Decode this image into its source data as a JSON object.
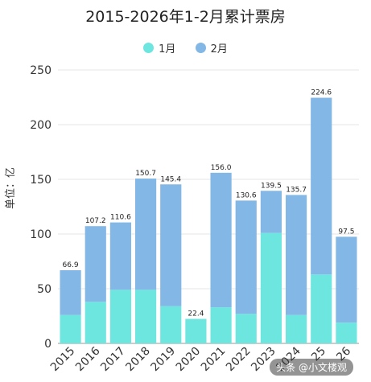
{
  "chart_data": {
    "type": "bar",
    "stacked": true,
    "title": "2015-2026年1-2月累计票房",
    "ylabel": "单位：亿",
    "categories": [
      "2015",
      "2016",
      "2017",
      "2018",
      "2019",
      "2020",
      "2021",
      "2022",
      "2023",
      "2024",
      "25",
      "26"
    ],
    "series": [
      {
        "name": "1月",
        "color": "#6ee6e0",
        "values": [
          26,
          38,
          49,
          49,
          34,
          22.4,
          33,
          27,
          101,
          26,
          63,
          19
        ]
      },
      {
        "name": "2月",
        "color": "#82b7e6",
        "values": [
          40.9,
          69.2,
          61.6,
          101.7,
          111.4,
          0,
          123,
          103.6,
          38.5,
          109.7,
          161.6,
          78.5
        ]
      }
    ],
    "totals": [
      "66.9",
      "107.2",
      "110.6",
      "150.7",
      "145.4",
      "22.4",
      "156.0",
      "130.6",
      "139.5",
      "135.7",
      "224.6",
      "97.5"
    ],
    "yticks": [
      0,
      50,
      100,
      150,
      200,
      250
    ],
    "ylim": [
      0,
      250
    ],
    "grid": true,
    "legend": "top-center"
  },
  "watermark": "头条 @小文楼观"
}
